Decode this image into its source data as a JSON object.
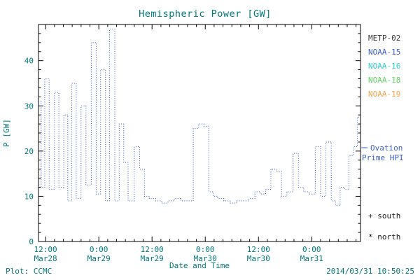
{
  "colors": {
    "text_teal": "#007878",
    "axis_black": "#000000",
    "hpi_line_blue": "#3A5FD0",
    "marker_black": "#1A1A1A"
  },
  "legend": {
    "items": [
      {
        "label": "METP-02",
        "color": "#333333"
      },
      {
        "label": "NOAA-15",
        "color": "#3A5FD0"
      },
      {
        "label": "NOAA-16",
        "color": "#33CCCC"
      },
      {
        "label": "NOAA-18",
        "color": "#5FD35F"
      },
      {
        "label": "NOAA-19",
        "color": "#F4A44A"
      }
    ],
    "ovation": {
      "line1": "Ovation",
      "line2": "Prime HPI",
      "color": "#3A5FD0"
    },
    "markers": {
      "south": "+ south",
      "north": "* north"
    }
  },
  "footer": {
    "plot_credit": "Plot: CCMC",
    "timestamp": "2014/03/31 10:50:25"
  },
  "chart_data": {
    "type": "line",
    "title": "Hemispheric Power [GW]",
    "xlabel": "Date and Time",
    "ylabel": "P [GW]",
    "ylim": [
      0,
      48
    ],
    "xlim_hours_from_mar28_0000": [
      10.4,
      83.0
    ],
    "y_ticks": [
      0,
      10,
      20,
      30,
      40
    ],
    "y_minor_step": 2,
    "x_minor_step_hours": 2,
    "x_ticks": [
      {
        "hour": 12,
        "time": "12:00",
        "date": "Mar28"
      },
      {
        "hour": 24,
        "time": "0:00",
        "date": "Mar29"
      },
      {
        "hour": 36,
        "time": "12:00",
        "date": "Mar29"
      },
      {
        "hour": 48,
        "time": "0:00",
        "date": "Mar30"
      },
      {
        "hour": 60,
        "time": "12:00",
        "date": "Mar30"
      },
      {
        "hour": 72,
        "time": "0:00",
        "date": "Mar31"
      }
    ],
    "grid": false,
    "legend_position": "right-outside",
    "line_style": "dotted-step",
    "series": [
      {
        "name": "Ovation Prime HPI",
        "color": "#3A5FD0",
        "x_hours": [
          10.4,
          11.0,
          11.8,
          12.8,
          14.0,
          15.0,
          16.1,
          17.0,
          17.9,
          18.9,
          20.0,
          21.1,
          22.3,
          23.4,
          24.4,
          25.5,
          26.4,
          27.6,
          28.6,
          29.6,
          30.6,
          32.0,
          33.2,
          34.3,
          35.4,
          36.8,
          38.2,
          39.6,
          41.0,
          42.5,
          45.3,
          46.5,
          47.7,
          48.8,
          49.8,
          50.8,
          52.2,
          53.6,
          55.0,
          56.4,
          57.8,
          59.2,
          60.4,
          61.6,
          62.8,
          64.0,
          65.2,
          66.4,
          67.8,
          69.0,
          70.2,
          71.4,
          72.8,
          74.0,
          75.2,
          76.4,
          77.4,
          78.4,
          79.4,
          80.4,
          81.4,
          82.3
        ],
        "values": [
          31,
          12,
          36,
          11.5,
          33,
          12,
          28,
          9,
          35,
          9.5,
          30,
          12.5,
          44,
          10.5,
          38,
          9,
          47,
          9,
          26,
          17.5,
          9,
          21,
          16,
          10,
          9.5,
          9,
          8.5,
          9,
          9.5,
          9,
          25,
          26,
          25.5,
          11,
          10,
          9.5,
          9,
          8.5,
          9,
          9,
          9.5,
          11,
          10.5,
          11.5,
          16,
          15.5,
          10,
          11,
          19.5,
          12,
          11,
          10.5,
          21,
          10,
          22,
          9,
          8,
          12,
          11.5,
          19,
          21,
          27.5
        ]
      }
    ]
  }
}
